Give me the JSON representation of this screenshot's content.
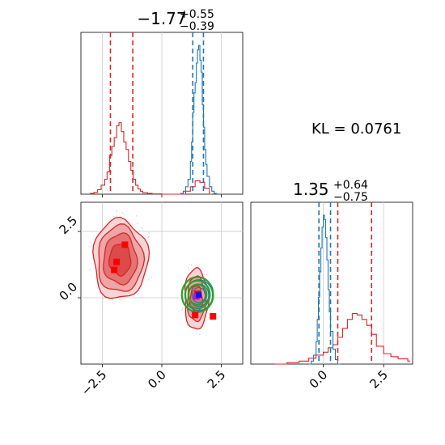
{
  "chart_data": {
    "type": "corner",
    "kl_annotation": "KL = 0.0761",
    "colors": {
      "red": "#d62728",
      "blue": "#1f77b4",
      "green": "#2ca02c",
      "grid": "#cccccc",
      "axis": "#000000"
    },
    "param1": {
      "title": {
        "median": "−1.77",
        "plus": "+0.55",
        "minus": "−0.39"
      },
      "range": [
        -3.4,
        3.4
      ],
      "ticks": [
        -2.5,
        0.0,
        2.5
      ],
      "tick_labels": [
        "−2.5",
        "0.0",
        "2.5"
      ],
      "quantiles_red": [
        -2.16,
        -1.22
      ],
      "quantiles_blue": [
        1.3,
        1.75
      ],
      "red_hist_x": [
        -3.0,
        -2.85,
        -2.7,
        -2.55,
        -2.4,
        -2.3,
        -2.2,
        -2.1,
        -2.0,
        -1.9,
        -1.8,
        -1.7,
        -1.6,
        -1.5,
        -1.4,
        -1.3,
        -1.2,
        -1.1,
        -1.0,
        -0.9,
        -0.8,
        -0.6,
        -0.4,
        0.0,
        0.5,
        1.0,
        1.2,
        1.4,
        1.6,
        1.8,
        2.0
      ],
      "red_hist_y": [
        0.005,
        0.012,
        0.03,
        0.06,
        0.1,
        0.15,
        0.26,
        0.32,
        0.38,
        0.46,
        0.48,
        0.42,
        0.35,
        0.3,
        0.22,
        0.16,
        0.1,
        0.06,
        0.035,
        0.02,
        0.01,
        0.005,
        0.002,
        0.0,
        0.0,
        0.02,
        0.05,
        0.09,
        0.08,
        0.04,
        0.0
      ],
      "blue_hist_x": [
        0.8,
        0.9,
        1.0,
        1.1,
        1.2,
        1.25,
        1.3,
        1.35,
        1.4,
        1.45,
        1.5,
        1.55,
        1.6,
        1.65,
        1.7,
        1.75,
        1.8,
        1.85,
        1.9,
        2.0,
        2.1,
        2.2
      ],
      "blue_hist_y": [
        0.005,
        0.02,
        0.05,
        0.1,
        0.22,
        0.35,
        0.55,
        0.68,
        0.75,
        0.88,
        0.97,
        1.0,
        0.9,
        0.82,
        0.6,
        0.45,
        0.3,
        0.2,
        0.12,
        0.05,
        0.02,
        0.005
      ]
    },
    "param2": {
      "title": {
        "median": "1.35",
        "plus": "+0.64",
        "minus": "−0.75"
      },
      "range": [
        -3.0,
        3.7
      ],
      "ticks": [
        0.0,
        2.5
      ],
      "tick_labels": [
        "0.0",
        "2.5"
      ],
      "quantiles_red": [
        0.6,
        2.0
      ],
      "quantiles_blue": [
        -0.18,
        0.3
      ],
      "red_hist_x": [
        -2.0,
        -1.5,
        -1.0,
        -0.6,
        -0.3,
        0.0,
        0.2,
        0.4,
        0.6,
        0.8,
        1.0,
        1.2,
        1.4,
        1.6,
        1.8,
        2.0,
        2.2,
        2.5,
        2.8,
        3.1,
        3.5
      ],
      "red_hist_y": [
        0.0,
        0.01,
        0.02,
        0.04,
        0.06,
        0.08,
        0.11,
        0.13,
        0.18,
        0.24,
        0.3,
        0.34,
        0.33,
        0.3,
        0.26,
        0.2,
        0.12,
        0.07,
        0.05,
        0.035,
        0.02
      ],
      "blue_hist_x": [
        -0.6,
        -0.5,
        -0.4,
        -0.3,
        -0.25,
        -0.2,
        -0.15,
        -0.1,
        -0.05,
        0.0,
        0.05,
        0.1,
        0.15,
        0.2,
        0.25,
        0.3,
        0.4,
        0.5,
        0.6
      ],
      "blue_hist_y": [
        0.0,
        0.02,
        0.06,
        0.15,
        0.3,
        0.45,
        0.62,
        0.78,
        0.92,
        1.0,
        0.97,
        0.85,
        0.7,
        0.5,
        0.35,
        0.22,
        0.1,
        0.03,
        0.0
      ]
    },
    "joint": {
      "red_modes": [
        {
          "cx": -1.75,
          "cy": 1.45,
          "rx": [
            1.15,
            0.95,
            0.7,
            0.45
          ],
          "ry": [
            1.5,
            1.25,
            0.95,
            0.6
          ]
        },
        {
          "cx": 1.45,
          "cy": -0.05,
          "rx": [
            0.5,
            0.38,
            0.26
          ],
          "ry": [
            1.15,
            0.85,
            0.5
          ]
        }
      ],
      "blue_contours": [
        {
          "cx": 1.55,
          "cy": 0.1,
          "r": [
            0.28,
            0.42,
            0.58
          ]
        }
      ],
      "green_contours": [
        {
          "cx": 1.5,
          "cy": 0.12,
          "r": [
            0.38,
            0.52,
            0.66
          ]
        }
      ],
      "red_markers": [
        [
          -1.55,
          2.0
        ],
        [
          -1.9,
          1.35
        ],
        [
          -2.0,
          1.05
        ],
        [
          1.4,
          -0.65
        ],
        [
          2.15,
          -0.7
        ],
        [
          1.5,
          0.15
        ]
      ],
      "blue_markers": [
        [
          1.55,
          0.1
        ]
      ],
      "purple_markers": [
        [
          1.45,
          0.05
        ]
      ]
    }
  }
}
